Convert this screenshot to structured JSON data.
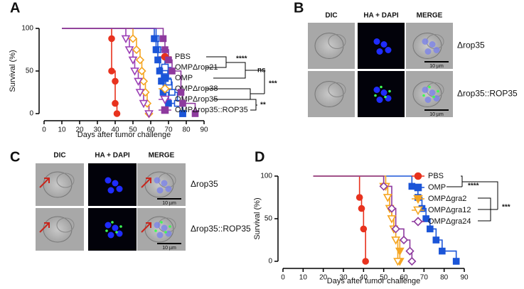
{
  "panel_labels": [
    "A",
    "B",
    "C",
    "D"
  ],
  "chart_data": [
    {
      "type": "survival",
      "y_label": "Survival (%)",
      "x_label": "Days after tumor challenge",
      "xlim": [
        0,
        90
      ],
      "xticks": [
        0,
        10,
        20,
        30,
        40,
        50,
        60,
        70,
        80,
        90
      ],
      "ylim": [
        0,
        100
      ],
      "yticks": [
        0,
        50,
        100
      ],
      "series": [
        {
          "name": "PBS",
          "color": "#e8321e",
          "marker": "circle",
          "filled": true,
          "x": [
            10,
            38,
            38,
            40,
            40,
            41
          ],
          "values": [
            100,
            88,
            50,
            38,
            12,
            0
          ]
        },
        {
          "name": "OMPΔrop21",
          "color": "#1b55d8",
          "marker": "square",
          "filled": false,
          "x": [
            10,
            63,
            64,
            68,
            70,
            72,
            75,
            78
          ],
          "values": [
            100,
            88,
            75,
            50,
            37,
            25,
            12,
            0
          ]
        },
        {
          "name": "OMP",
          "color": "#1b55d8",
          "marker": "square",
          "filled": true,
          "x": [
            10,
            62,
            63,
            64,
            65,
            66,
            67,
            70,
            78
          ],
          "values": [
            100,
            88,
            75,
            63,
            50,
            38,
            25,
            12,
            0
          ]
        },
        {
          "name": "OMPΔrop38",
          "color": "#f5a623",
          "marker": "diamond",
          "filled": false,
          "x": [
            10,
            50,
            52,
            54,
            55,
            56,
            57,
            58,
            59
          ],
          "values": [
            100,
            88,
            75,
            63,
            50,
            38,
            25,
            12,
            0
          ]
        },
        {
          "name": "OMPΔrop35",
          "color": "#9b3fb5",
          "marker": "tri",
          "filled": false,
          "x": [
            10,
            46,
            48,
            50,
            51,
            53,
            54,
            56,
            59
          ],
          "values": [
            100,
            88,
            75,
            63,
            50,
            38,
            25,
            12,
            0
          ]
        },
        {
          "name": "OMPΔrop35::ROP35",
          "color": "#8e3a9e",
          "marker": "square",
          "filled": true,
          "x": [
            10,
            67,
            68,
            70,
            72,
            77,
            78,
            85
          ],
          "values": [
            100,
            88,
            75,
            63,
            50,
            25,
            12,
            0
          ]
        }
      ],
      "annotations": [
        "****",
        "ns",
        "***",
        "**"
      ]
    },
    {
      "type": "survival",
      "y_label": "Survival (%)",
      "x_label": "Days after tumor challenge",
      "xlim": [
        0,
        90
      ],
      "xticks": [
        0,
        10,
        20,
        30,
        40,
        50,
        60,
        70,
        80,
        90
      ],
      "ylim": [
        0,
        100
      ],
      "yticks": [
        0,
        50,
        100
      ],
      "series": [
        {
          "name": "PBS",
          "color": "#e8321e",
          "marker": "circle",
          "filled": true,
          "x": [
            15,
            38,
            39,
            40,
            41
          ],
          "values": [
            100,
            75,
            62,
            38,
            0
          ]
        },
        {
          "name": "OMP",
          "color": "#1b55d8",
          "marker": "square",
          "filled": true,
          "x": [
            15,
            64,
            67,
            69,
            71,
            73,
            76,
            79,
            86
          ],
          "values": [
            100,
            88,
            75,
            62,
            50,
            38,
            25,
            12,
            0
          ]
        },
        {
          "name": "OMPΔgra2",
          "color": "#f5a623",
          "marker": "tri",
          "filled": true,
          "x": [
            15,
            50,
            52,
            53,
            54,
            55,
            56,
            58,
            58
          ],
          "values": [
            100,
            88,
            75,
            62,
            50,
            38,
            25,
            12,
            0
          ]
        },
        {
          "name": "OMPΔgra12",
          "color": "#f5a623",
          "marker": "tri",
          "filled": false,
          "x": [
            15,
            51,
            52,
            53,
            54,
            55,
            56,
            57
          ],
          "values": [
            100,
            88,
            75,
            62,
            50,
            38,
            25,
            0
          ]
        },
        {
          "name": "OMPΔgra24",
          "color": "#8e3a9e",
          "marker": "diamond",
          "filled": false,
          "x": [
            15,
            50,
            54,
            56,
            60,
            63,
            64
          ],
          "values": [
            100,
            88,
            62,
            38,
            25,
            12,
            0
          ]
        }
      ],
      "annotations": [
        "****",
        "***"
      ]
    }
  ],
  "micrographs": [
    {
      "columns": [
        "DIC",
        "HA + DAPI",
        "MERGE"
      ],
      "rows": [
        "Δrop35",
        "Δrop35::ROP35"
      ],
      "scale_bar": "10 µm"
    },
    {
      "columns": [
        "DIC",
        "HA + DAPI",
        "MERGE"
      ],
      "rows": [
        "Δrop35",
        "Δrop35::ROP35"
      ],
      "scale_bar": "10 µm"
    }
  ]
}
